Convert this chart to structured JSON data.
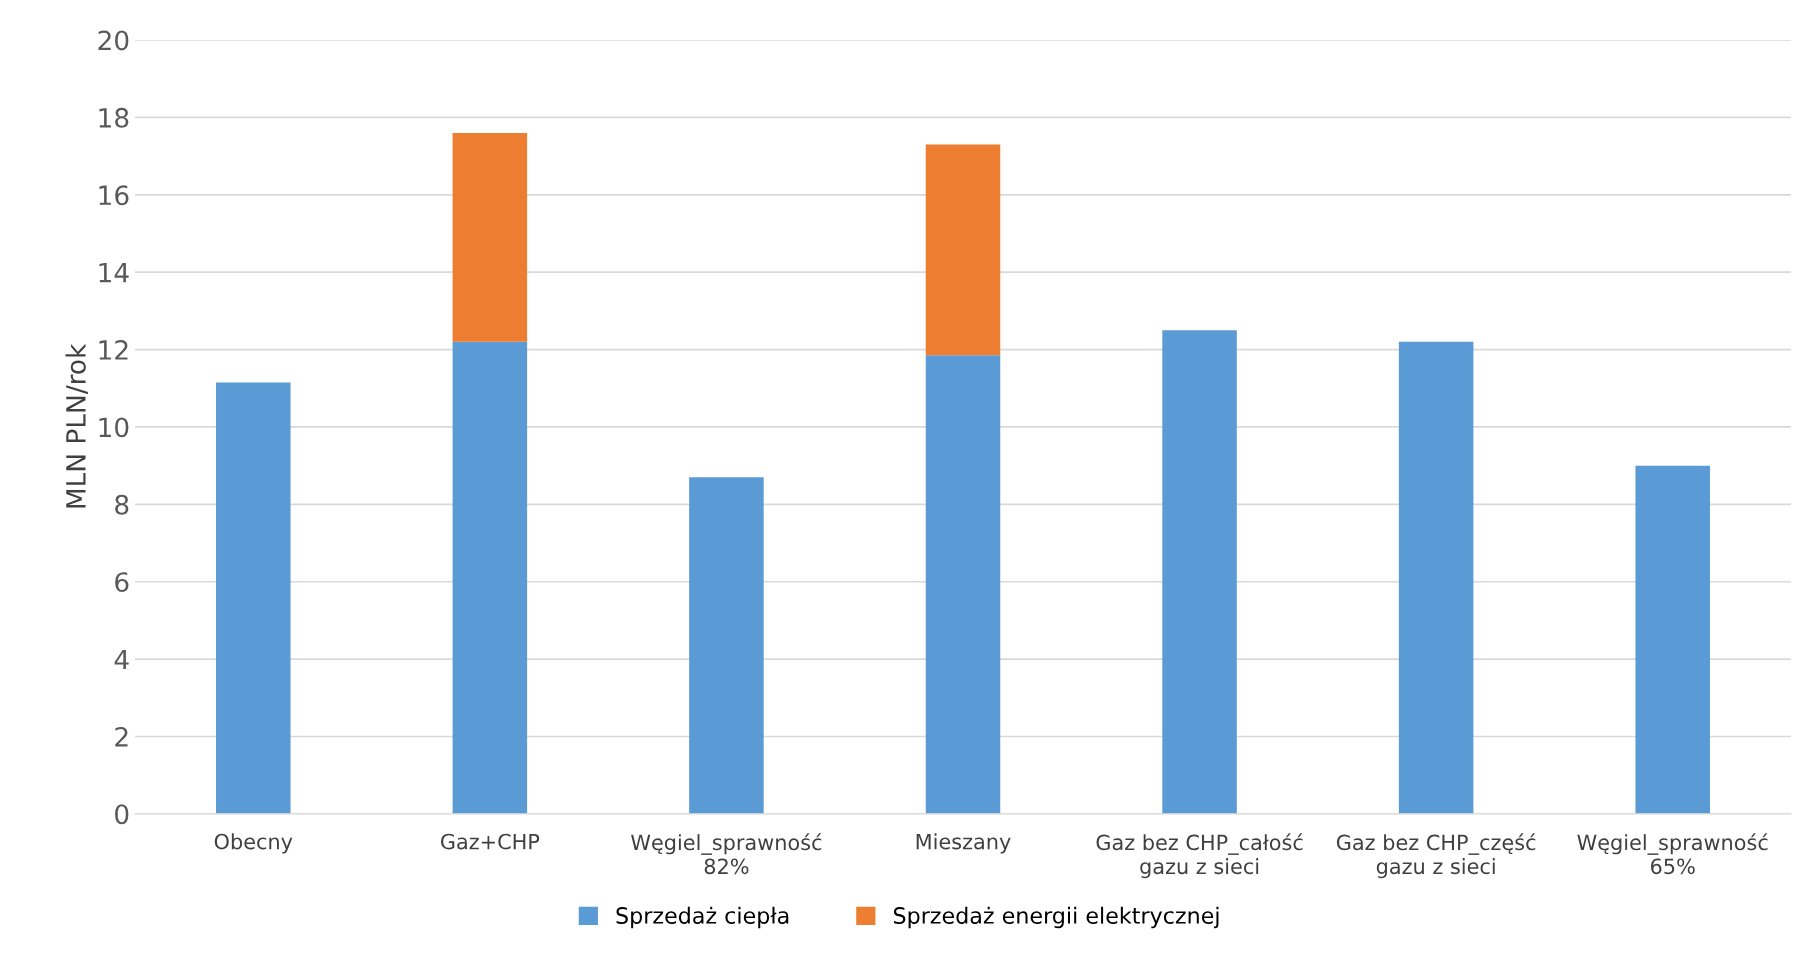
{
  "chart_data": {
    "type": "bar",
    "stacked": true,
    "ylabel": "MLN PLN/rok",
    "categories": [
      "Obecny",
      "Gaz+CHP",
      "Węgiel_sprawność\n82%",
      "Mieszany",
      "Gaz bez CHP_całość\ngazu z sieci",
      "Gaz bez CHP_część\ngazu z sieci",
      "Węgiel_sprawność\n65%"
    ],
    "series": [
      {
        "name": "Sprzedaż ciepła",
        "color": "#5b9bd5",
        "values": [
          11.15,
          12.2,
          8.7,
          11.85,
          12.5,
          12.2,
          9.0
        ]
      },
      {
        "name": "Sprzedaż energii elektrycznej",
        "color": "#ed7d31",
        "values": [
          null,
          5.4,
          null,
          5.45,
          null,
          null,
          null
        ]
      }
    ],
    "ylim": [
      0,
      20
    ],
    "yticks": [
      0,
      2,
      4,
      6,
      8,
      10,
      12,
      14,
      16,
      18,
      20
    ],
    "grid": "y",
    "legend": "bottom"
  }
}
